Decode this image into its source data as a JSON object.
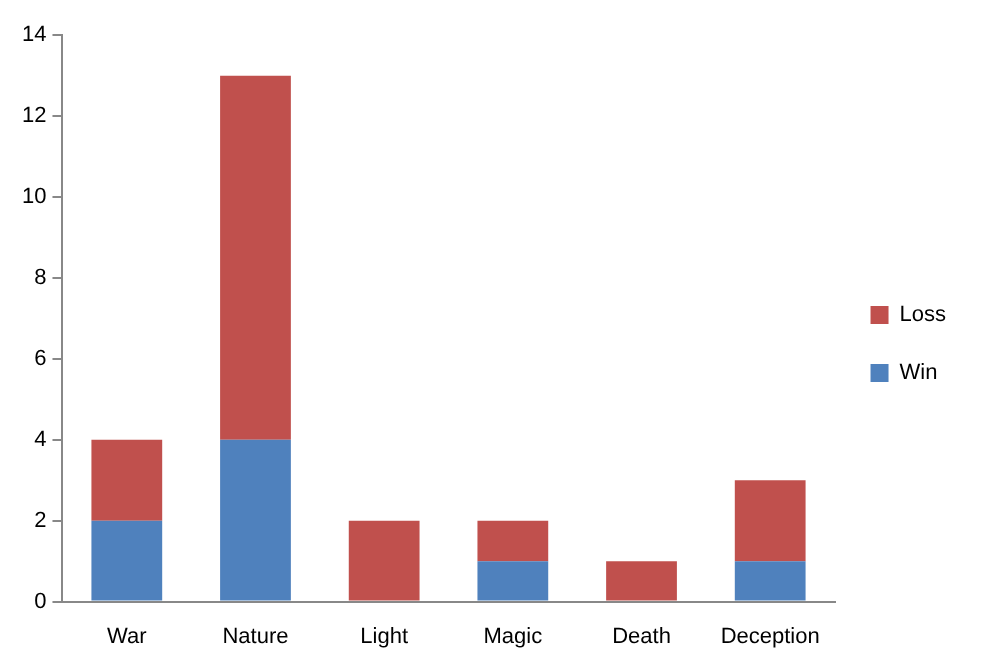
{
  "chart_data": {
    "type": "bar",
    "stacked": true,
    "categories": [
      "War",
      "Nature",
      "Light",
      "Magic",
      "Death",
      "Deception"
    ],
    "series": [
      {
        "name": "Win",
        "color": "#4f81bd",
        "values": [
          2,
          4,
          0,
          1,
          0,
          1
        ]
      },
      {
        "name": "Loss",
        "color": "#c0504d",
        "values": [
          2,
          9,
          2,
          1,
          1,
          2
        ]
      }
    ],
    "ylim": [
      0,
      14
    ],
    "yticks": [
      0,
      2,
      4,
      6,
      8,
      10,
      12,
      14
    ],
    "grid": false,
    "legend": "right"
  }
}
